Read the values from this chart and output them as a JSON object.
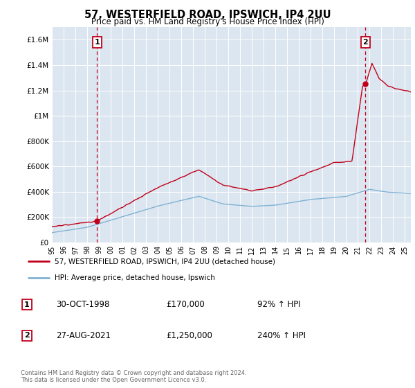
{
  "title": "57, WESTERFIELD ROAD, IPSWICH, IP4 2UU",
  "subtitle": "Price paid vs. HM Land Registry's House Price Index (HPI)",
  "plot_background": "#dce6f0",
  "ylim": [
    0,
    1700000
  ],
  "yticks": [
    0,
    200000,
    400000,
    600000,
    800000,
    1000000,
    1200000,
    1400000,
    1600000
  ],
  "ytick_labels": [
    "£0",
    "£200K",
    "£400K",
    "£600K",
    "£800K",
    "£1M",
    "£1.2M",
    "£1.4M",
    "£1.6M"
  ],
  "xlim_start": 1995.0,
  "xlim_end": 2025.5,
  "sale1_x": 1998.83,
  "sale1_y": 170000,
  "sale1_label": "1",
  "sale1_date": "30-OCT-1998",
  "sale1_price": "£170,000",
  "sale1_hpi": "92% ↑ HPI",
  "sale2_x": 2021.65,
  "sale2_y": 1250000,
  "sale2_label": "2",
  "sale2_date": "27-AUG-2021",
  "sale2_price": "£1,250,000",
  "sale2_hpi": "240% ↑ HPI",
  "hpi_line_color": "#7fb2d4",
  "price_line_color": "#c0001a",
  "dashed_line_color": "#c0001a",
  "legend_label_price": "57, WESTERFIELD ROAD, IPSWICH, IP4 2UU (detached house)",
  "legend_label_hpi": "HPI: Average price, detached house, Ipswich",
  "footer": "Contains HM Land Registry data © Crown copyright and database right 2024.\nThis data is licensed under the Open Government Licence v3.0.",
  "xtick_years": [
    1995,
    1996,
    1997,
    1998,
    1999,
    2000,
    2001,
    2002,
    2003,
    2004,
    2005,
    2006,
    2007,
    2008,
    2009,
    2010,
    2011,
    2012,
    2013,
    2014,
    2015,
    2016,
    2017,
    2018,
    2019,
    2020,
    2021,
    2022,
    2023,
    2024,
    2025
  ]
}
